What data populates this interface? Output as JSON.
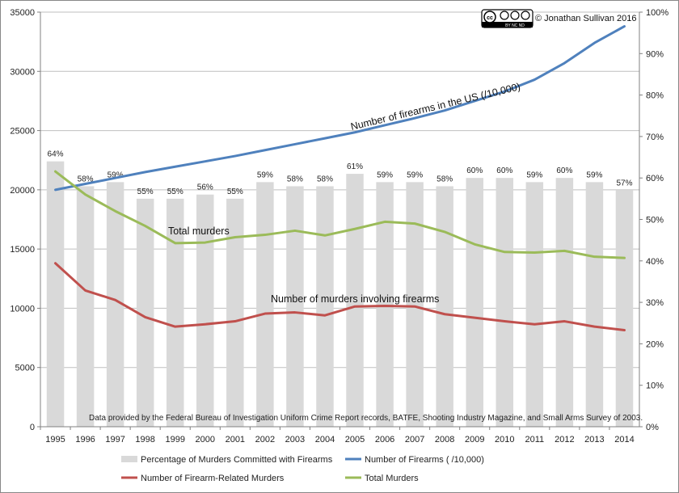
{
  "chart_data": {
    "type": "bar+line",
    "categories": [
      "1995",
      "1996",
      "1997",
      "1998",
      "1999",
      "2000",
      "2001",
      "2002",
      "2003",
      "2004",
      "2005",
      "2006",
      "2007",
      "2008",
      "2009",
      "2010",
      "2011",
      "2012",
      "2013",
      "2014"
    ],
    "y_left": {
      "ylim": [
        0,
        35000
      ],
      "ticks": [
        "0",
        "5000",
        "10000",
        "15000",
        "20000",
        "25000",
        "30000",
        "35000"
      ]
    },
    "y_right": {
      "ylim": [
        0,
        100
      ],
      "ticks": [
        "0%",
        "10%",
        "20%",
        "30%",
        "40%",
        "50%",
        "60%",
        "70%",
        "80%",
        "90%",
        "100%"
      ]
    },
    "series": [
      {
        "name": "Percentage of Murders Committed  with Firearms",
        "type": "bar",
        "axis": "right",
        "color": "#d9d9d9",
        "values": [
          64,
          58,
          59,
          55,
          55,
          56,
          55,
          59,
          58,
          58,
          61,
          59,
          59,
          58,
          60,
          60,
          59,
          60,
          59,
          57
        ],
        "labels": [
          "64%",
          "58%",
          "59%",
          "55%",
          "55%",
          "56%",
          "55%",
          "59%",
          "58%",
          "58%",
          "61%",
          "59%",
          "59%",
          "58%",
          "60%",
          "60%",
          "59%",
          "60%",
          "59%",
          "57%"
        ]
      },
      {
        "name": "Number of Firearms ( /10,000)",
        "type": "line",
        "axis": "left",
        "color": "#4f81bd",
        "values": [
          20000,
          20500,
          21000,
          21500,
          21950,
          22400,
          22850,
          23350,
          23850,
          24350,
          24850,
          25450,
          26050,
          26700,
          27500,
          28300,
          29300,
          30700,
          32400,
          33800
        ]
      },
      {
        "name": "Number of Firearm-Related Murders",
        "type": "line",
        "axis": "left",
        "color": "#c0504d",
        "values": [
          13800,
          11500,
          10700,
          9250,
          8450,
          8650,
          8900,
          9550,
          9650,
          9400,
          10150,
          10200,
          10150,
          9500,
          9200,
          8900,
          8650,
          8900,
          8450,
          8150
        ]
      },
      {
        "name": "Total Murders",
        "type": "line",
        "axis": "left",
        "color": "#9bbb59",
        "values": [
          21550,
          19600,
          18200,
          16950,
          15500,
          15550,
          16000,
          16200,
          16550,
          16150,
          16700,
          17300,
          17150,
          16450,
          15400,
          14750,
          14700,
          14850,
          14350,
          14250
        ]
      }
    ],
    "annotations": {
      "firearms": "Number of firearms in the US (/10,000)",
      "total": "Total murders",
      "firearm_murders": "Number of murders involving firearms"
    },
    "copyright": "© Jonathan  Sullivan 2016",
    "license_badge": {
      "cc": "cc",
      "terms": "BY  NC  ND"
    },
    "source_note": "Data provided by the Federal Bureau of Investigation Uniform Crime Report records, BATFE, Shooting Industry Magazine, and Small Arms Survey of 2003.",
    "legend_position": "bottom",
    "grid": "horizontal"
  }
}
